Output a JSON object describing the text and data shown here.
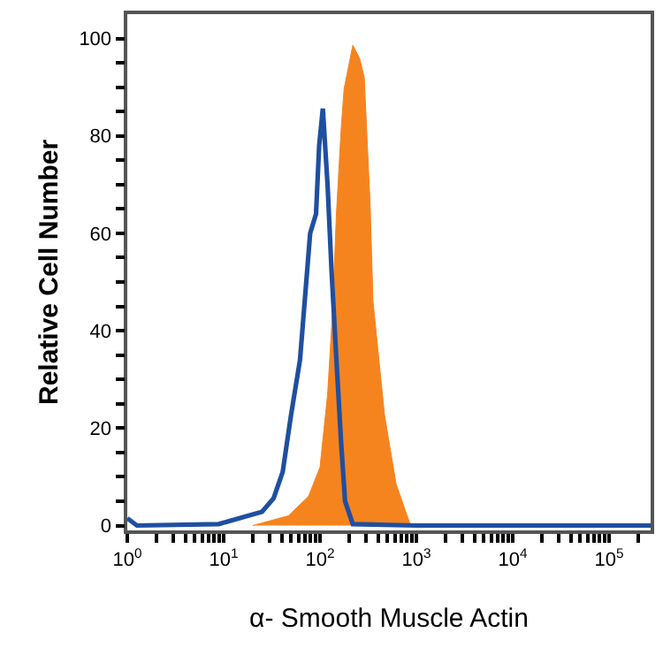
{
  "chart_data": {
    "type": "line",
    "xlabel": "α- Smooth Muscle Actin",
    "ylabel": "Relative Cell Number",
    "log": "x",
    "xlim": [
      1,
      270000
    ],
    "ylim": [
      -1,
      105
    ],
    "xticks": [
      {
        "value": 1,
        "label": "10$^{0}$"
      },
      {
        "value": 2,
        "label": null
      },
      {
        "value": 3,
        "label": null
      },
      {
        "value": 4,
        "label": null
      },
      {
        "value": 5,
        "label": null
      },
      {
        "value": 6,
        "label": null
      },
      {
        "value": 7,
        "label": null
      },
      {
        "value": 8,
        "label": null
      },
      {
        "value": 9,
        "label": null
      },
      {
        "value": 10,
        "label": "10$^{1}$"
      },
      {
        "value": 20,
        "label": null
      },
      {
        "value": 30,
        "label": null
      },
      {
        "value": 40,
        "label": null
      },
      {
        "value": 50,
        "label": null
      },
      {
        "value": 60,
        "label": null
      },
      {
        "value": 70,
        "label": null
      },
      {
        "value": 80,
        "label": null
      },
      {
        "value": 90,
        "label": null
      },
      {
        "value": 100,
        "label": "10$^{2}$"
      },
      {
        "value": 200,
        "label": null
      },
      {
        "value": 300,
        "label": null
      },
      {
        "value": 400,
        "label": null
      },
      {
        "value": 500,
        "label": null
      },
      {
        "value": 600,
        "label": null
      },
      {
        "value": 700,
        "label": null
      },
      {
        "value": 800,
        "label": null
      },
      {
        "value": 900,
        "label": null
      },
      {
        "value": 1000,
        "label": "10$^{3}$"
      },
      {
        "value": 2000,
        "label": null
      },
      {
        "value": 3000,
        "label": null
      },
      {
        "value": 4000,
        "label": null
      },
      {
        "value": 5000,
        "label": null
      },
      {
        "value": 6000,
        "label": null
      },
      {
        "value": 7000,
        "label": null
      },
      {
        "value": 8000,
        "label": null
      },
      {
        "value": 9000,
        "label": null
      },
      {
        "value": 10000,
        "label": "10$^{4}$"
      },
      {
        "value": 20000,
        "label": null
      },
      {
        "value": 30000,
        "label": null
      },
      {
        "value": 40000,
        "label": null
      },
      {
        "value": 50000,
        "label": null
      },
      {
        "value": 60000,
        "label": null
      },
      {
        "value": 70000,
        "label": null
      },
      {
        "value": 80000,
        "label": null
      },
      {
        "value": 90000,
        "label": null
      },
      {
        "value": 100000,
        "label": "10$^{5}$"
      },
      {
        "value": 200000,
        "label": null
      }
    ],
    "yticks": [
      0,
      {
        "value": 5,
        "label": null
      },
      {
        "value": 10,
        "label": null
      },
      {
        "value": 15,
        "label": null
      },
      20,
      {
        "value": 25,
        "label": null
      },
      {
        "value": 30,
        "label": null
      },
      {
        "value": 35,
        "label": null
      },
      40,
      {
        "value": 45,
        "label": null
      },
      {
        "value": 50,
        "label": null
      },
      {
        "value": 55,
        "label": null
      },
      60,
      {
        "value": 65,
        "label": null
      },
      {
        "value": 70,
        "label": null
      },
      {
        "value": 75,
        "label": null
      },
      80,
      {
        "value": 85,
        "label": null
      },
      {
        "value": 90,
        "label": null
      },
      {
        "value": 95,
        "label": null
      },
      100
    ],
    "series": [
      {
        "type": "area",
        "color": "#f5841f",
        "x": [
          20,
          47,
          76,
          100,
          120,
          135,
          148,
          166,
          178,
          219,
          257,
          288,
          331,
          355,
          468,
          617,
          871
        ],
        "values": [
          0,
          2,
          6,
          12,
          27,
          44,
          64,
          81.6,
          89.7,
          98.6,
          96,
          92,
          66,
          46,
          22.6,
          8.5,
          0
        ]
      },
      {
        "color": "#1f4fa0",
        "x": [
          1,
          1.26,
          8.9,
          17.8,
          25,
          33,
          41,
          50,
          62,
          71,
          79,
          91,
          98,
          107,
          120,
          132,
          148,
          166,
          182,
          219,
          1000,
          270000
        ],
        "values": [
          1.5,
          0,
          0.3,
          2,
          2.8,
          5.6,
          11,
          22.6,
          34,
          48.5,
          60,
          64,
          78,
          85.6,
          69.7,
          52,
          34,
          16.7,
          5,
          0.3,
          0,
          0
        ]
      }
    ]
  }
}
